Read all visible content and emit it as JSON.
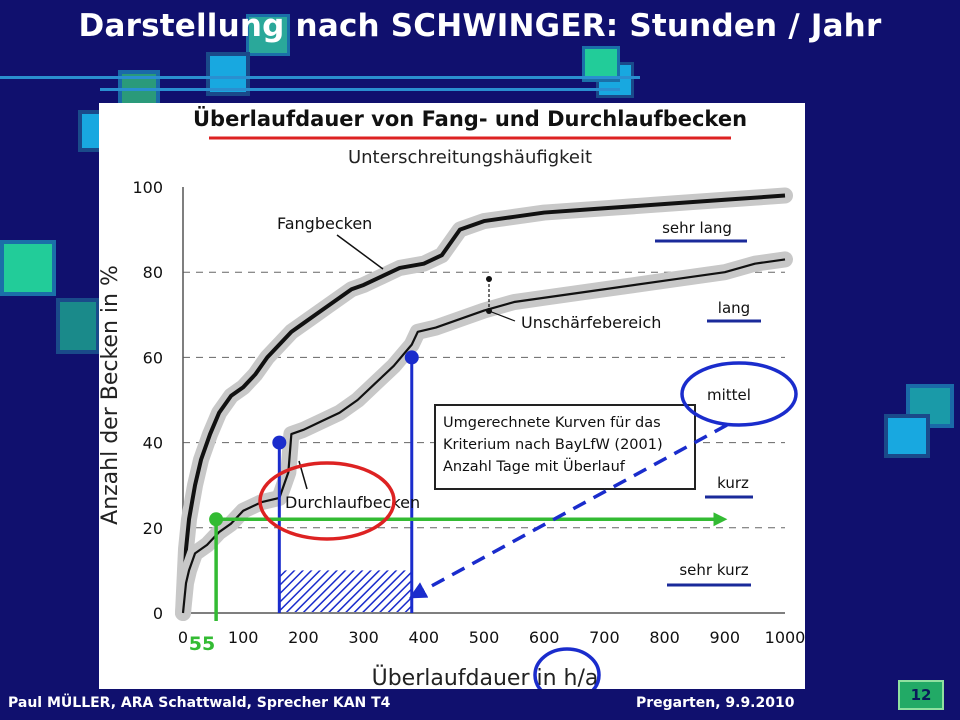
{
  "slide": {
    "title": "Darstellung nach SCHWINGER: Stunden / Jahr",
    "footer_left": "Paul MÜLLER, ARA Schattwald, Sprecher KAN T4",
    "footer_right": "Pregarten, 9.9.2010",
    "page_number": "12"
  },
  "colors": {
    "background": "#10106e",
    "marker_blue": "#1a2ccc",
    "marker_green": "#33bb33",
    "highlight_red": "#dd2222",
    "category_line": "#1a2a9a"
  },
  "chart_data": {
    "type": "line",
    "title": "Überlaufdauer von Fang- und Durchlaufbecken",
    "subtitle": "Unterschreitungshäufigkeit",
    "xlabel": "Überlaufdauer in h/a",
    "ylabel": "Anzahl der Becken in %",
    "xlim": [
      0,
      1000
    ],
    "ylim": [
      0,
      100
    ],
    "x_ticks": [
      "0",
      "100",
      "200",
      "300",
      "400",
      "500",
      "600",
      "700",
      "800",
      "900",
      "1000"
    ],
    "y_ticks": [
      "0",
      "20",
      "40",
      "60",
      "80",
      "100"
    ],
    "grid": "dashed horizontal at 20, 40, 60, 80",
    "series": [
      {
        "name": "Fangbecken",
        "x": [
          0,
          5,
          10,
          20,
          30,
          45,
          60,
          80,
          100,
          120,
          140,
          160,
          180,
          200,
          220,
          240,
          260,
          280,
          300,
          330,
          360,
          400,
          430,
          460,
          500,
          550,
          600,
          700,
          800,
          900,
          1000
        ],
        "y": [
          0,
          15,
          22,
          30,
          36,
          42,
          47,
          51,
          53,
          56,
          60,
          63,
          66,
          68,
          70,
          72,
          74,
          76,
          77,
          79,
          81,
          82,
          84,
          90,
          92,
          93,
          94,
          95,
          96,
          97,
          98
        ]
      },
      {
        "name": "Durchlaufbecken",
        "x": [
          0,
          5,
          10,
          20,
          40,
          60,
          80,
          100,
          130,
          160,
          175,
          180,
          200,
          230,
          260,
          290,
          320,
          350,
          380,
          390,
          420,
          460,
          500,
          550,
          600,
          700,
          800,
          900,
          950,
          1000
        ],
        "y": [
          0,
          7,
          10,
          14,
          16,
          19,
          21,
          24,
          26,
          27,
          33,
          42,
          43,
          45,
          47,
          50,
          54,
          58,
          63,
          66,
          67,
          69,
          71,
          73,
          74,
          76,
          78,
          80,
          82,
          83
        ]
      }
    ],
    "annotations": {
      "curve_label_fang": "Fangbecken",
      "curve_label_durchlauf": "Durchlaufbecken",
      "uncertainty_label": "Unschärfebereich",
      "box_lines": [
        "Umgerechnete Kurven für das",
        "Kriterium nach BayLfW (2001)",
        "Anzahl Tage mit Überlauf"
      ],
      "categories": [
        "sehr lang",
        "lang",
        "mittel",
        "kurz",
        "sehr kurz"
      ],
      "marker_value_label": "55",
      "markers_blue": [
        {
          "x": 160,
          "y": 40
        },
        {
          "x": 380,
          "y": 60
        }
      ],
      "marker_green": {
        "x": 55,
        "y": 22
      },
      "hatched_range": [
        160,
        380
      ]
    }
  }
}
